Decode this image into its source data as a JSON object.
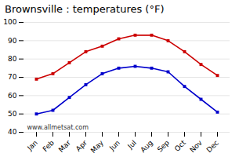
{
  "chart_data": {
    "type": "line",
    "title": "Brownsville : temperatures (°F)",
    "categories": [
      "Jan",
      "Feb",
      "Mar",
      "Apr",
      "May",
      "Jun",
      "Jul",
      "Aug",
      "Sep",
      "Oct",
      "Nov",
      "Dec"
    ],
    "series": [
      {
        "color": "#cc0000",
        "values": [
          69,
          72,
          78,
          84,
          87,
          91,
          93,
          93,
          90,
          84,
          77,
          71
        ]
      },
      {
        "color": "#0000cc",
        "values": [
          50,
          52,
          59,
          66,
          72,
          75,
          76,
          75,
          73,
          65,
          58,
          51
        ]
      }
    ],
    "marker": "square",
    "ylim": [
      40,
      100
    ],
    "yticks": [
      40,
      50,
      60,
      70,
      80,
      90,
      100
    ],
    "grid": "y",
    "annotations": [
      "www.allmetsat.com"
    ]
  }
}
